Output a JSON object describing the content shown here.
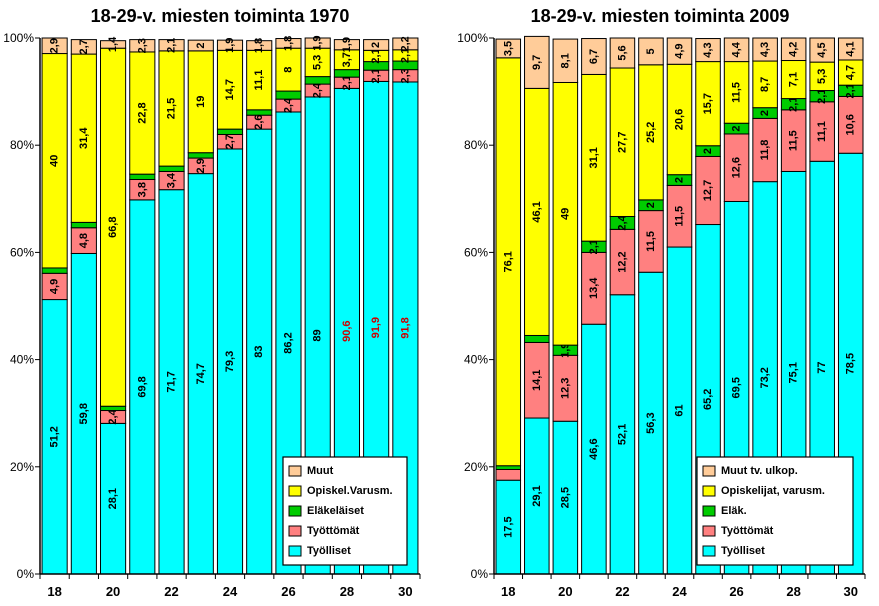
{
  "chart_data": [
    {
      "type": "bar",
      "stacked": true,
      "title": "18-29-v. miesten toiminta 1970",
      "categories": [
        "18",
        "19",
        "20",
        "21",
        "22",
        "23",
        "24",
        "25",
        "26",
        "27",
        "28",
        "29",
        "30"
      ],
      "x_tick_labels": [
        "18",
        "20",
        "22",
        "24",
        "26",
        "28",
        "30"
      ],
      "y_tick_labels": [
        "0%",
        "20%",
        "40%",
        "60%",
        "80%",
        "100%"
      ],
      "ylim": [
        0,
        100
      ],
      "legend": {
        "placement": "bottom-right"
      },
      "series": [
        {
          "name": "Työlliset",
          "color": "#00FFFF",
          "values": [
            51.2,
            59.8,
            28.1,
            69.8,
            71.7,
            74.7,
            79.3,
            83,
            86.2,
            89,
            90.6,
            91.9,
            91.8
          ],
          "labels": [
            "51,2",
            "59,8",
            "28,1",
            "69,8",
            "71,7",
            "74,7",
            "79,3",
            "83",
            "86,2",
            "89",
            "90,6",
            "91,9",
            "91,8"
          ]
        },
        {
          "name": "Työttömät",
          "color": "#FF8080",
          "values": [
            4.9,
            4.8,
            2.4,
            3.8,
            3.4,
            2.9,
            2.7,
            2.6,
            2.4,
            2.4,
            2.1,
            2.1,
            2.3
          ],
          "labels": [
            "4,9",
            "4,8",
            "2,4",
            "3,8",
            "3,4",
            "2,9",
            "2,7",
            "2,6",
            "2,4",
            "2,4",
            "2,1",
            "2,1",
            "2,3"
          ]
        },
        {
          "name": "Eläkeläiset",
          "color": "#00CC00",
          "values": [
            1,
            1,
            0.8,
            1,
            1,
            1,
            1,
            1,
            1.5,
            1.4,
            1.4,
            1.6,
            1.6
          ],
          "labels": [
            "",
            "",
            "",
            "",
            "",
            "",
            "",
            "",
            "",
            "",
            "",
            "",
            ""
          ]
        },
        {
          "name": "Opiskel.Varusm.",
          "color": "#FFFF00",
          "values": [
            40,
            31.4,
            66.8,
            22.8,
            21.5,
            19,
            14.7,
            11.1,
            8,
            5.3,
            3.7,
            2.1,
            2.1
          ],
          "labels": [
            "40",
            "31,4",
            "66,8",
            "22,8",
            "21,5",
            "19",
            "14,7",
            "11,1",
            "8",
            "5,3",
            "3,7",
            "2,1",
            "2,1"
          ]
        },
        {
          "name": "Muut",
          "color": "#FFCC99",
          "values": [
            2.9,
            2.7,
            1.4,
            2.3,
            2.1,
            2,
            1.9,
            1.8,
            1.8,
            1.9,
            1.9,
            2,
            2.2
          ],
          "labels": [
            "2,9",
            "2,7",
            "1,4",
            "2,3",
            "2,1",
            "2",
            "1,9",
            "1,8",
            "1,8",
            "1,9",
            "1,9",
            "2",
            "2,2"
          ]
        }
      ]
    },
    {
      "type": "bar",
      "stacked": true,
      "title": "18-29-v. miesten toiminta 2009",
      "categories": [
        "18",
        "19",
        "20",
        "21",
        "22",
        "23",
        "24",
        "25",
        "26",
        "27",
        "28",
        "29",
        "30"
      ],
      "x_tick_labels": [
        "18",
        "20",
        "22",
        "24",
        "26",
        "28",
        "30"
      ],
      "y_tick_labels": [
        "0%",
        "20%",
        "40%",
        "60%",
        "80%",
        "100%"
      ],
      "ylim": [
        0,
        100
      ],
      "legend": {
        "placement": "bottom-right"
      },
      "series": [
        {
          "name": "Työlliset",
          "color": "#00FFFF",
          "values": [
            17.5,
            29.1,
            28.5,
            46.6,
            52.1,
            56.3,
            61,
            65.2,
            69.5,
            73.2,
            75.1,
            77,
            78.5
          ],
          "labels": [
            "17,5",
            "29,1",
            "28,5",
            "46,6",
            "52,1",
            "56,3",
            "61",
            "65,2",
            "69,5",
            "73,2",
            "75,1",
            "77",
            "78,5"
          ]
        },
        {
          "name": "Työttömät",
          "color": "#FF8080",
          "values": [
            2,
            14.1,
            12.3,
            13.4,
            12.2,
            11.5,
            11.5,
            12.7,
            12.6,
            11.8,
            11.5,
            11.1,
            10.6
          ],
          "labels": [
            "",
            "14,1",
            "12,3",
            "13,4",
            "12,2",
            "11,5",
            "11,5",
            "12,7",
            "12,6",
            "11,8",
            "11,5",
            "11,1",
            "10,6"
          ]
        },
        {
          "name": "Eläk.",
          "color": "#00CC00",
          "values": [
            0.7,
            1.3,
            1.9,
            2.1,
            2.4,
            2,
            2,
            2,
            2,
            2,
            2.1,
            2.1,
            2.1
          ],
          "labels": [
            "",
            "",
            "1,9",
            "2,1",
            "2,4",
            "2",
            "2",
            "2",
            "2",
            "2",
            "2,1",
            "2,1",
            "2,1"
          ]
        },
        {
          "name": "Opiskelijat, varusm.",
          "color": "#FFFF00",
          "values": [
            76.1,
            46.1,
            49,
            31.1,
            27.7,
            25.2,
            20.6,
            15.7,
            11.5,
            8.7,
            7.1,
            5.3,
            4.7
          ],
          "labels": [
            "76,1",
            "46,1",
            "49",
            "31,1",
            "27,7",
            "25,2",
            "20,6",
            "15,7",
            "11,5",
            "8,7",
            "7,1",
            "5,3",
            "4,7"
          ]
        },
        {
          "name": "Muut tv. ulkop.",
          "color": "#FFCC99",
          "values": [
            3.5,
            9.7,
            8.1,
            6.7,
            5.6,
            5,
            4.9,
            4.3,
            4.4,
            4.3,
            4.2,
            4.5,
            4.1
          ],
          "labels": [
            "3,5",
            "9,7",
            "8,1",
            "6,7",
            "5,6",
            "5",
            "4,9",
            "4,3",
            "4,4",
            "4,3",
            "4,2",
            "4,5",
            "4,1"
          ]
        }
      ]
    }
  ]
}
